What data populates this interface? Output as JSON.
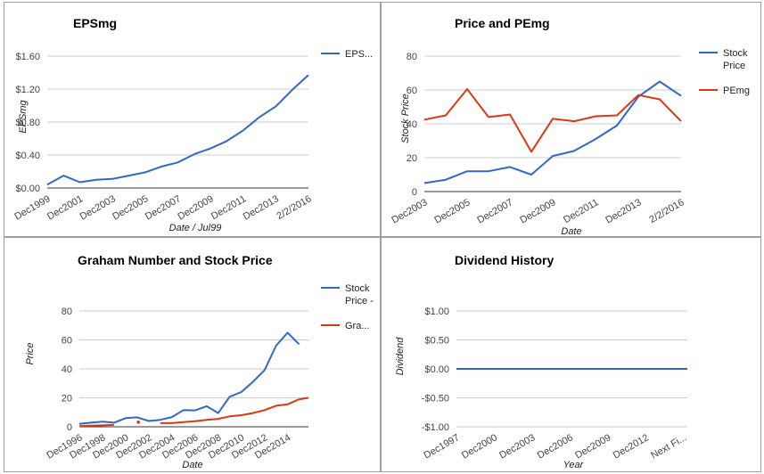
{
  "colors": {
    "blue": "#3366cc",
    "red": "#dc3912",
    "grid": "#cccccc",
    "axis": "#333333"
  },
  "chart_data": [
    {
      "type": "line",
      "title": "EPSmg",
      "xlabel": "Date / Jul99",
      "ylabel": "EPSmg",
      "x_tick_labels": [
        "Dec1999",
        "Dec2001",
        "Dec2003",
        "Dec2005",
        "Dec2007",
        "Dec2009",
        "Dec2011",
        "Dec2013",
        "2/2/2016"
      ],
      "y_tick_labels": [
        "$0.00",
        "$0.40",
        "$0.80",
        "$1.20",
        "$1.60"
      ],
      "ylim": [
        0,
        1.6
      ],
      "grid": true,
      "legend_position": "right",
      "series": [
        {
          "name": "EPS...",
          "color": "#3366cc",
          "x": [
            0,
            1,
            2,
            3,
            4,
            5,
            6,
            7,
            8,
            9,
            10,
            11,
            12,
            13,
            14,
            15,
            16
          ],
          "values": [
            0.04,
            0.15,
            0.07,
            0.1,
            0.11,
            0.15,
            0.19,
            0.26,
            0.31,
            0.41,
            0.48,
            0.57,
            0.7,
            0.86,
            0.99,
            1.19,
            1.37
          ]
        }
      ]
    },
    {
      "type": "line",
      "title": "Price and PEmg",
      "xlabel": "Date",
      "ylabel": "Stock Price",
      "x_tick_labels": [
        "Dec2003",
        "Dec2005",
        "Dec2007",
        "Dec2009",
        "Dec2011",
        "Dec2013",
        "2/2/2016"
      ],
      "y_tick_labels": [
        "0",
        "20",
        "40",
        "60",
        "80"
      ],
      "ylim": [
        0,
        80
      ],
      "grid": true,
      "legend_position": "right",
      "series": [
        {
          "name": "Stock Price",
          "color": "#3366cc",
          "x": [
            0,
            1,
            2,
            3,
            4,
            5,
            6,
            7,
            8,
            9,
            10,
            11,
            12
          ],
          "values": [
            5,
            7,
            12,
            12,
            14.5,
            10,
            21,
            24,
            31,
            39,
            56,
            65,
            56.5
          ]
        },
        {
          "name": "PEmg",
          "color": "#dc3912",
          "x": [
            0,
            1,
            2,
            3,
            4,
            5,
            6,
            7,
            8,
            9,
            10,
            11,
            12
          ],
          "values": [
            42.5,
            45,
            60.5,
            44,
            45.5,
            23.5,
            43,
            41.5,
            44.5,
            45,
            57,
            54.5,
            41.5
          ]
        }
      ]
    },
    {
      "type": "line",
      "title": "Graham Number and Stock Price",
      "xlabel": "Date",
      "ylabel": "Price",
      "x_tick_labels": [
        "Dec1996",
        "Dec1998",
        "Dec2000",
        "Dec2002",
        "Dec2004",
        "Dec2006",
        "Dec2008",
        "Dec2010",
        "Dec2012",
        "Dec2014"
      ],
      "y_tick_labels": [
        "0",
        "20",
        "40",
        "60",
        "80"
      ],
      "ylim": [
        0,
        80
      ],
      "grid": true,
      "legend_position": "right",
      "series": [
        {
          "name": "Stock Price -",
          "color": "#3366cc",
          "x": [
            0,
            1,
            2,
            3,
            4,
            5,
            6,
            7,
            8,
            9,
            10,
            11,
            12,
            13,
            14,
            15,
            16,
            17,
            18,
            19
          ],
          "values": [
            2,
            2.8,
            3.5,
            2.8,
            6,
            6.5,
            4,
            4.8,
            6.7,
            11.5,
            11.3,
            14.2,
            9.5,
            20.8,
            24,
            31,
            39,
            56,
            65,
            57
          ]
        },
        {
          "name": "Gra...",
          "color": "#dc3912",
          "segments": [
            {
              "x": [
                0,
                1,
                2,
                3
              ],
              "values": [
                0.5,
                0.8,
                1,
                1.3
              ]
            },
            {
              "x": [
                5.1
              ],
              "values": [
                3.2
              ]
            },
            {
              "x": [
                7,
                8,
                9,
                10,
                11,
                12,
                13,
                14,
                15,
                16,
                17,
                18,
                19
              ],
              "values": [
                2.5,
                2.5,
                3.2,
                3.8,
                4.8,
                5.5,
                7.2,
                8,
                9.5,
                11.5,
                14.5,
                15.5,
                19
              ]
            },
            {
              "x": [
                19,
                19.8
              ],
              "values": [
                19,
                20
              ]
            }
          ]
        }
      ]
    },
    {
      "type": "line",
      "title": "Dividend History",
      "xlabel": "Year",
      "ylabel": "Dividend",
      "x_tick_labels": [
        "Dec1997",
        "Dec2000",
        "Dec2003",
        "Dec2006",
        "Dec2009",
        "Dec2012",
        "Next Fi..."
      ],
      "y_tick_labels": [
        "-$1.00",
        "-$0.50",
        "$0.00",
        "$0.50",
        "$1.00"
      ],
      "ylim": [
        -1,
        1
      ],
      "grid": true,
      "series": [
        {
          "color": "#3366cc",
          "x": [
            0,
            1
          ],
          "values": [
            0,
            0
          ]
        }
      ]
    }
  ]
}
